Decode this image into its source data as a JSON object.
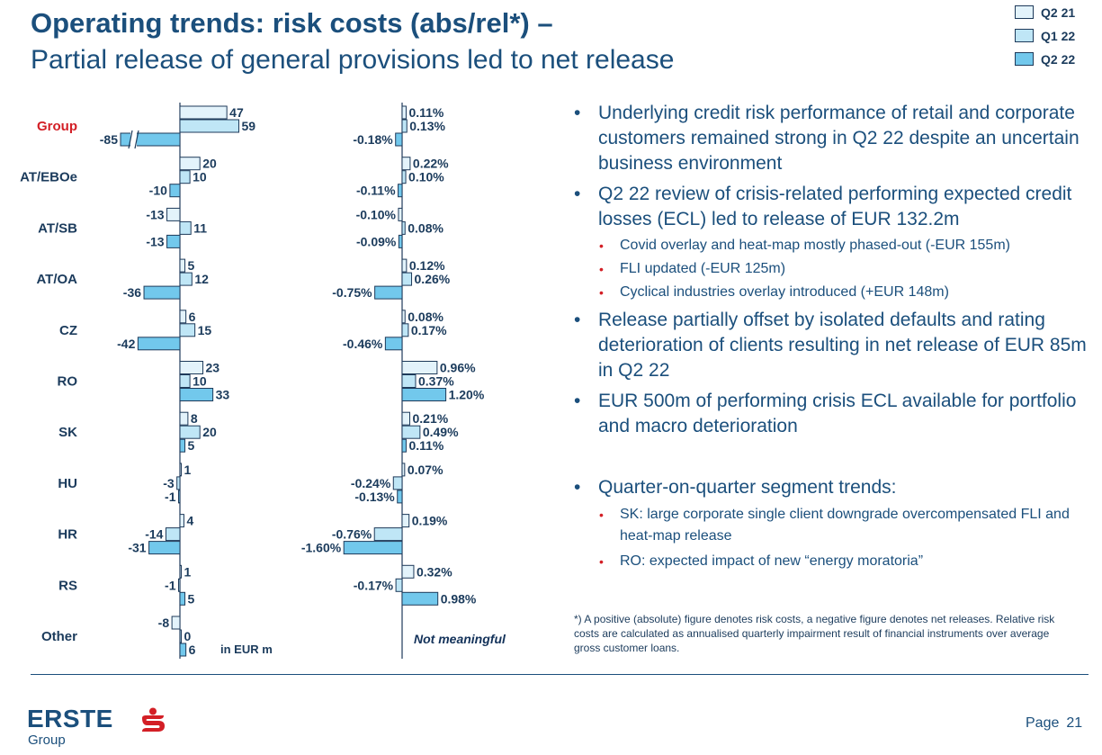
{
  "slide": {
    "title": "Operating trends: risk costs (abs/rel*) –",
    "subtitle": "Partial release of general provisions led to net release",
    "page_label": "Page",
    "page_number": "21"
  },
  "legend": [
    {
      "label": "Q2 21",
      "color": "#e3f3fb"
    },
    {
      "label": "Q1 22",
      "color": "#bfe6f6"
    },
    {
      "label": "Q2 22",
      "color": "#72c8ec"
    }
  ],
  "chart_data": [
    {
      "type": "bar",
      "orientation": "horizontal",
      "unit_label": "in EUR m",
      "categories": [
        "Group",
        "AT/EBOe",
        "AT/SB",
        "AT/OA",
        "CZ",
        "RO",
        "SK",
        "HU",
        "HR",
        "RS",
        "Other"
      ],
      "series": [
        {
          "name": "Q2 21",
          "values": [
            47,
            20,
            -13,
            5,
            6,
            23,
            8,
            1,
            4,
            1,
            -8
          ],
          "labels": [
            "47",
            "20",
            "-13",
            "5",
            "6",
            "23",
            "8",
            "1",
            "4",
            "1",
            "-8"
          ]
        },
        {
          "name": "Q1 22",
          "values": [
            59,
            10,
            11,
            12,
            15,
            10,
            20,
            -3,
            -14,
            -1,
            0
          ],
          "labels": [
            "59",
            "10",
            "11",
            "12",
            "15",
            "10",
            "20",
            "-3",
            "-14",
            "-1",
            "0"
          ]
        },
        {
          "name": "Q2 22",
          "values": [
            -85,
            -10,
            -13,
            -36,
            -42,
            33,
            5,
            -1,
            -31,
            5,
            6
          ],
          "labels": [
            "-85",
            "-10",
            "-13",
            "-36",
            "-42",
            "33",
            "5",
            "-1",
            "-31",
            "5",
            "6"
          ]
        }
      ],
      "axis_break": "Group Q2 22"
    },
    {
      "type": "bar",
      "orientation": "horizontal",
      "unit": "%",
      "note": "Not meaningful",
      "categories": [
        "Group",
        "AT/EBOe",
        "AT/SB",
        "AT/OA",
        "CZ",
        "RO",
        "SK",
        "HU",
        "HR",
        "RS",
        "Other"
      ],
      "series": [
        {
          "name": "Q2 21",
          "values": [
            0.11,
            0.22,
            -0.1,
            0.12,
            0.08,
            0.96,
            0.21,
            0.07,
            0.19,
            0.32,
            null
          ],
          "labels": [
            "0.11%",
            "0.22%",
            "-0.10%",
            "0.12%",
            "0.08%",
            "0.96%",
            "0.21%",
            "0.07%",
            "0.19%",
            "0.32%",
            ""
          ]
        },
        {
          "name": "Q1 22",
          "values": [
            0.13,
            0.1,
            0.08,
            0.26,
            0.17,
            0.37,
            0.49,
            -0.24,
            -0.76,
            -0.17,
            null
          ],
          "labels": [
            "0.13%",
            "0.10%",
            "0.08%",
            "0.26%",
            "0.17%",
            "0.37%",
            "0.49%",
            "-0.24%",
            "-0.76%",
            "-0.17%",
            ""
          ]
        },
        {
          "name": "Q2 22",
          "values": [
            -0.18,
            -0.11,
            -0.09,
            -0.75,
            -0.46,
            1.2,
            0.11,
            -0.13,
            -1.6,
            0.98,
            null
          ],
          "labels": [
            "-0.18%",
            "-0.11%",
            "-0.09%",
            "-0.75%",
            "-0.46%",
            "1.20%",
            "0.11%",
            "-0.13%",
            "-1.60%",
            "0.98%",
            ""
          ]
        }
      ]
    }
  ],
  "bullets": [
    {
      "level": 1,
      "marker": "•",
      "text": "Underlying credit risk performance of retail and corporate customers remained strong in Q2 22 despite an uncertain business environment"
    },
    {
      "level": 1,
      "marker": "•",
      "text": "Q2 22 review of crisis-related performing expected credit losses (ECL) led to release of EUR 132.2m"
    },
    {
      "level": 2,
      "marker": "•",
      "text": "Covid overlay and heat-map mostly phased-out (-EUR 155m)"
    },
    {
      "level": 2,
      "marker": "•",
      "text": "FLI updated (-EUR 125m)"
    },
    {
      "level": 2,
      "marker": "•",
      "text": "Cyclical industries overlay introduced (+EUR 148m)"
    },
    {
      "level": 1,
      "marker": "•",
      "text": "Release partially offset by isolated defaults and rating deterioration of clients resulting in net release of EUR 85m in Q2 22"
    },
    {
      "level": 1,
      "marker": "•",
      "text": "EUR 500m of performing crisis ECL available for portfolio and macro deterioration"
    },
    {
      "level": 1,
      "marker": "•",
      "text": "Quarter-on-quarter segment trends:"
    },
    {
      "level": 2,
      "marker": "•",
      "text": "SK: large corporate single client downgrade overcompensated FLI and heat-map release"
    },
    {
      "level": 2,
      "marker": "•",
      "text": "RO: expected impact of new “energy moratoria”"
    }
  ],
  "footnote": "*) A positive (absolute) figure denotes risk costs, a negative figure denotes net releases. Relative risk costs are calculated as annualised quarterly impairment result of financial instruments over average gross customer loans.",
  "logo": {
    "wordmark": "ERSTE",
    "subline": "Group"
  },
  "colors": {
    "title": "#1b4f7c",
    "text": "#1b3b5c",
    "highlight_category": "#d31f26",
    "bar_border": "#1e3a5a",
    "brand_red": "#d31f26"
  }
}
